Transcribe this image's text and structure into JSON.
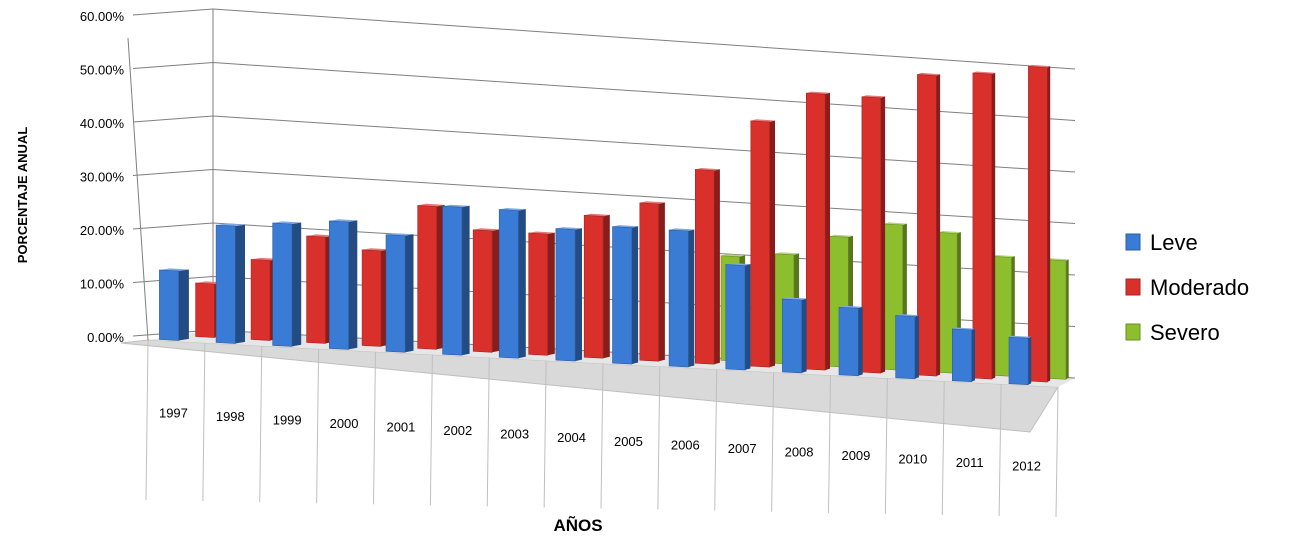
{
  "chart_data": {
    "type": "bar",
    "title": "",
    "xlabel": "AÑOS",
    "ylabel": "PORCENTAJE  ANUAL",
    "categories": [
      "1997",
      "1998",
      "1999",
      "2000",
      "2001",
      "2002",
      "2003",
      "2004",
      "2005",
      "2006",
      "2007",
      "2008",
      "2009",
      "2010",
      "2011",
      "2012"
    ],
    "y_ticks": [
      "0.00%",
      "10.00%",
      "20.00%",
      "30.00%",
      "40.00%",
      "50.00%",
      "60.00%"
    ],
    "ylim": [
      0,
      60
    ],
    "grid": true,
    "legend_position": "right",
    "series": [
      {
        "name": "Leve",
        "color": "#3a7bd5",
        "values": [
          13,
          22,
          23,
          24,
          22,
          28,
          28,
          25,
          26,
          26,
          20,
          14,
          13,
          12,
          10,
          9
        ]
      },
      {
        "name": "Moderado",
        "color": "#d9302c",
        "values": [
          10,
          15,
          20,
          18,
          27,
          23,
          23,
          27,
          30,
          37,
          47,
          53,
          53,
          58,
          59,
          61
        ]
      },
      {
        "name": "Severo",
        "color": "#8dbe2e",
        "values": [
          0,
          0,
          0,
          0,
          0,
          0,
          0,
          0,
          0,
          20,
          21,
          25,
          28,
          27,
          23,
          23
        ]
      }
    ]
  }
}
